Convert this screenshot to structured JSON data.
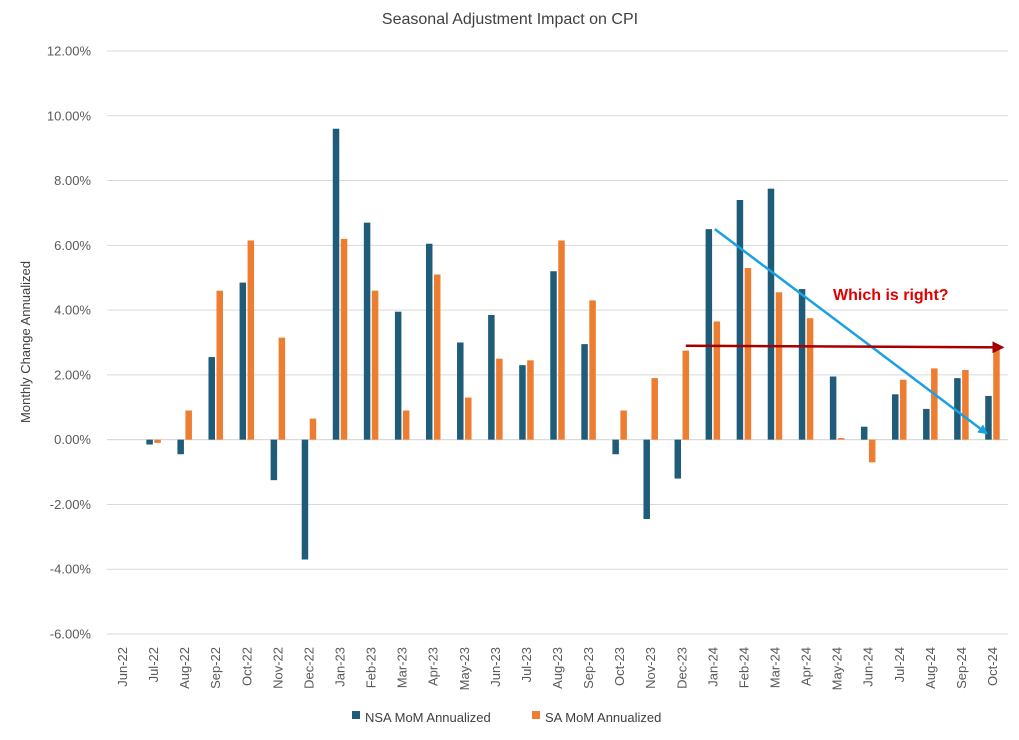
{
  "chart_data": {
    "type": "bar",
    "title": "Seasonal Adjustment Impact on CPI",
    "xlabel": "",
    "ylabel": "Monthly Change Annualized",
    "ylim": [
      -6,
      12
    ],
    "y_ticks": [
      "-6.00%",
      "-4.00%",
      "-2.00%",
      "0.00%",
      "2.00%",
      "4.00%",
      "6.00%",
      "8.00%",
      "10.00%",
      "12.00%"
    ],
    "grid": true,
    "legend_position": "bottom",
    "categories": [
      "Jun-22",
      "Jul-22",
      "Aug-22",
      "Sep-22",
      "Oct-22",
      "Nov-22",
      "Dec-22",
      "Jan-23",
      "Feb-23",
      "Mar-23",
      "Apr-23",
      "May-23",
      "Jun-23",
      "Jul-23",
      "Aug-23",
      "Sep-23",
      "Oct-23",
      "Nov-23",
      "Dec-23",
      "Jan-24",
      "Feb-24",
      "Mar-24",
      "Apr-24",
      "May-24",
      "Jun-24",
      "Jul-24",
      "Aug-24",
      "Sep-24",
      "Oct-24"
    ],
    "series": [
      {
        "name": "NSA MoM Annualized",
        "color": "#1F5C7A",
        "values": [
          0,
          -0.15,
          -0.45,
          2.55,
          4.85,
          -1.25,
          -3.7,
          9.6,
          6.7,
          3.95,
          6.05,
          3.0,
          3.85,
          2.3,
          5.2,
          2.95,
          -0.45,
          -2.45,
          -1.2,
          6.5,
          7.4,
          7.75,
          4.65,
          1.95,
          0.4,
          1.4,
          0.95,
          1.9,
          1.35
        ]
      },
      {
        "name": "SA MoM Annualized",
        "color": "#ED7D31",
        "values": [
          0,
          -0.1,
          0.9,
          4.6,
          6.15,
          3.15,
          0.65,
          6.2,
          4.6,
          0.9,
          5.1,
          1.3,
          2.5,
          2.45,
          6.15,
          4.3,
          0.9,
          1.9,
          2.75,
          3.65,
          5.3,
          4.55,
          3.75,
          0.05,
          -0.7,
          1.85,
          2.2,
          2.15,
          2.9
        ]
      }
    ],
    "annotations": [
      {
        "text": "Which is right?",
        "color": "#E00000"
      },
      {
        "type": "arrow",
        "color": "#1BA1E2",
        "from": [
          "Jan-24",
          6.5
        ],
        "to": [
          "Oct-24",
          0.2
        ]
      },
      {
        "type": "arrow",
        "color": "#A50000",
        "from": [
          "Dec-23",
          2.9
        ],
        "to": [
          "Oct-24",
          2.85
        ]
      }
    ]
  }
}
